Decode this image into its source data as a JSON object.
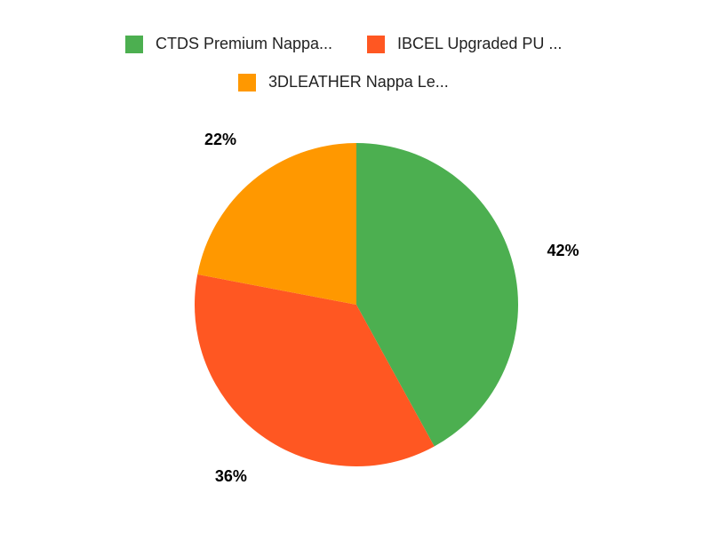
{
  "chart_data": {
    "type": "pie",
    "categories": [
      "CTDS Premium Nappa...",
      "IBCEL Upgraded PU ...",
      "3DLEATHER Nappa Le..."
    ],
    "values": [
      42,
      36,
      22
    ],
    "value_labels": [
      "42%",
      "36%",
      "22%"
    ],
    "colors": [
      "#4caf50",
      "#ff5722",
      "#ff9800"
    ],
    "legend": "top"
  }
}
